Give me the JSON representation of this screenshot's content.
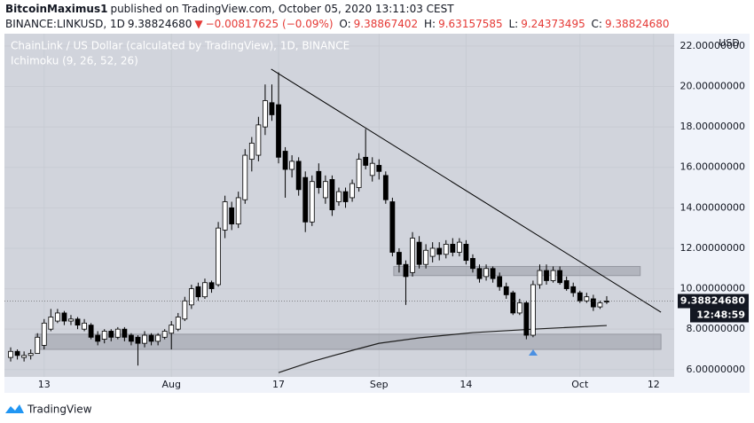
{
  "header": {
    "author": "BitcoinMaximus1",
    "published": "published on TradingView.com, October 05, 2020 13:11:03 CEST",
    "symbol": "BINANCE:LINKUSD, 1D",
    "last": "9.38824680",
    "arrow": "▼",
    "change": "−0.00817625 (−0.09%)",
    "open_label": "O:",
    "open": "9.38867402",
    "high_label": "H:",
    "high": "9.63157585",
    "low_label": "L:",
    "low": "9.24373495",
    "close_label": "C:",
    "close": "9.38824680"
  },
  "footer": {
    "brand": "TradingView"
  },
  "chart_data": {
    "type": "candlestick",
    "title": "ChainLink / US Dollar (calculated by TradingView), 1D, BINANCE",
    "indicator": {
      "name": "Ichimoku (9, 26, 52, 26)",
      "color": "#1e1e1e",
      "x": [
        40,
        45,
        51,
        55,
        61,
        69,
        78,
        89
      ],
      "values": [
        5.85,
        6.4,
        6.95,
        7.3,
        7.57,
        7.83,
        8.0,
        8.18
      ]
    },
    "y_axis_unit": "USD",
    "last_price_label": "9.38824680",
    "countdown": "12:48:59",
    "up_color": "#ffffff",
    "down_color": "#000000",
    "x": [
      0,
      1,
      2,
      3,
      4,
      5,
      6,
      7,
      8,
      9,
      10,
      11,
      12,
      13,
      14,
      15,
      16,
      17,
      18,
      19,
      20,
      21,
      22,
      23,
      24,
      25,
      26,
      27,
      28,
      29,
      30,
      31,
      32,
      33,
      34,
      35,
      36,
      37,
      38,
      39,
      40,
      41,
      42,
      43,
      44,
      45,
      46,
      47,
      48,
      49,
      50,
      51,
      52,
      53,
      54,
      55,
      56,
      57,
      58,
      59,
      60,
      61,
      62,
      63,
      64,
      65,
      66,
      67,
      68,
      69,
      70,
      71,
      72,
      73,
      74,
      75,
      76,
      77,
      78,
      79,
      80,
      81,
      82,
      83,
      84,
      85,
      86,
      87,
      88,
      89
    ],
    "open": [
      6.6,
      6.9,
      6.6,
      6.7,
      6.8,
      7.2,
      8.0,
      8.4,
      8.8,
      8.4,
      8.5,
      8.0,
      8.2,
      7.7,
      7.5,
      7.9,
      7.6,
      8.0,
      7.7,
      7.6,
      7.3,
      7.7,
      7.4,
      7.6,
      7.8,
      8.0,
      8.5,
      9.2,
      10.1,
      9.6,
      10.3,
      10.2,
      12.9,
      14.0,
      13.2,
      14.4,
      16.4,
      16.6,
      18.0,
      19.2,
      19.1,
      16.8,
      15.9,
      16.3,
      15.5,
      13.3,
      15.8,
      14.5,
      15.4,
      14.3,
      14.8,
      14.5,
      15.0,
      16.5,
      15.6,
      16.1,
      15.6,
      14.3,
      11.8,
      11.2,
      10.8,
      12.3,
      11.2,
      11.6,
      12.0,
      11.7,
      12.2,
      11.8,
      12.2,
      11.5,
      11.0,
      10.6,
      11.0,
      10.6,
      10.1,
      9.8,
      8.8,
      9.3,
      7.7,
      10.2,
      10.9,
      10.4,
      10.9,
      10.4,
      10.1,
      9.8,
      9.4,
      9.5,
      9.1,
      9.38867402
    ],
    "high": [
      7.1,
      7.0,
      6.9,
      7.0,
      7.8,
      8.5,
      9.0,
      9.0,
      8.9,
      8.7,
      8.6,
      8.5,
      8.3,
      7.9,
      8.0,
      8.0,
      8.1,
      8.1,
      7.8,
      7.7,
      7.9,
      7.8,
      7.8,
      8.0,
      8.4,
      8.8,
      9.6,
      10.2,
      10.3,
      10.5,
      10.4,
      13.3,
      14.6,
      14.3,
      14.8,
      16.9,
      17.5,
      18.5,
      20.1,
      20.1,
      20.7,
      17.0,
      16.6,
      16.5,
      15.8,
      15.6,
      16.2,
      15.6,
      15.6,
      15.0,
      15.0,
      15.4,
      16.7,
      17.9,
      16.5,
      16.4,
      15.8,
      14.5,
      12.0,
      11.4,
      12.8,
      12.6,
      12.2,
      12.3,
      12.3,
      12.4,
      12.5,
      12.5,
      12.4,
      11.7,
      11.2,
      11.2,
      11.1,
      10.8,
      10.3,
      9.9,
      9.5,
      9.4,
      10.4,
      11.2,
      11.2,
      11.1,
      11.1,
      10.6,
      10.3,
      9.9,
      9.8,
      9.7,
      9.4,
      9.63157585
    ],
    "low": [
      6.4,
      6.5,
      6.4,
      6.5,
      6.8,
      7.0,
      7.9,
      8.3,
      8.2,
      8.2,
      8.0,
      7.9,
      7.5,
      7.2,
      7.3,
      7.4,
      7.5,
      7.4,
      7.2,
      6.2,
      7.1,
      7.2,
      7.2,
      7.5,
      7.0,
      7.9,
      8.4,
      9.0,
      9.4,
      9.5,
      9.8,
      10.1,
      12.5,
      12.9,
      13.0,
      14.2,
      15.8,
      16.3,
      17.6,
      18.3,
      16.2,
      14.5,
      15.5,
      14.6,
      12.8,
      13.1,
      14.7,
      14.2,
      13.6,
      14.1,
      14.0,
      14.3,
      14.8,
      15.9,
      15.3,
      15.4,
      14.2,
      11.6,
      10.8,
      9.2,
      10.6,
      11.0,
      11.0,
      11.3,
      11.4,
      11.5,
      11.6,
      11.6,
      11.2,
      10.8,
      10.3,
      10.4,
      10.3,
      9.9,
      9.5,
      8.7,
      8.7,
      7.5,
      7.6,
      10.0,
      10.2,
      10.3,
      10.2,
      9.9,
      9.6,
      9.3,
      9.3,
      8.9,
      9.0,
      9.24373495
    ],
    "close": [
      6.9,
      6.7,
      6.7,
      6.8,
      7.6,
      8.3,
      8.6,
      8.8,
      8.4,
      8.5,
      8.2,
      8.3,
      7.6,
      7.4,
      7.9,
      7.6,
      8.0,
      7.6,
      7.4,
      7.3,
      7.7,
      7.4,
      7.7,
      7.9,
      8.2,
      8.6,
      9.4,
      10.0,
      9.6,
      10.3,
      10.0,
      13.0,
      14.3,
      13.2,
      14.5,
      16.6,
      17.2,
      18.1,
      19.3,
      18.6,
      16.5,
      15.9,
      16.3,
      14.9,
      13.3,
      15.3,
      15.0,
      15.3,
      13.9,
      14.8,
      14.3,
      15.2,
      16.4,
      16.1,
      16.2,
      15.8,
      14.4,
      11.8,
      11.2,
      10.6,
      12.5,
      11.2,
      11.9,
      12.0,
      11.7,
      12.2,
      11.8,
      12.3,
      11.4,
      11.0,
      10.5,
      11.0,
      10.5,
      10.1,
      9.7,
      8.8,
      9.3,
      7.7,
      10.2,
      10.9,
      10.4,
      10.9,
      10.3,
      10.0,
      9.8,
      9.4,
      9.6,
      9.1,
      9.3,
      9.3882468
    ],
    "trendline": {
      "x": [
        38.9,
        97.1
      ],
      "y": [
        20.86,
        8.84
      ]
    },
    "zones": [
      {
        "x": [
          57.2,
          94.0
        ],
        "y": [
          10.65,
          11.1
        ]
      },
      {
        "x": [
          3.7,
          97.1
        ],
        "y": [
          7.0,
          7.75
        ]
      }
    ],
    "xlim": [
      -0.93,
      99.07
    ],
    "xticks": [
      {
        "value": 5,
        "label": "13"
      },
      {
        "value": 24,
        "label": "Aug"
      },
      {
        "value": 40,
        "label": "17"
      },
      {
        "value": 55,
        "label": "Sep"
      },
      {
        "value": 68,
        "label": "14"
      },
      {
        "value": 85,
        "label": "Oct"
      },
      {
        "value": 96,
        "label": "12"
      }
    ],
    "ylim": [
      5.64,
      22.61
    ],
    "yticks": [
      {
        "value": 6,
        "label": "6.00000000"
      },
      {
        "value": 8,
        "label": "8.00000000"
      },
      {
        "value": 10,
        "label": "10.00000000"
      },
      {
        "value": 12,
        "label": "12.00000000"
      },
      {
        "value": 14,
        "label": "14.00000000"
      },
      {
        "value": 16,
        "label": "16.00000000"
      },
      {
        "value": 18,
        "label": "18.00000000"
      },
      {
        "value": 20,
        "label": "20.00000000"
      },
      {
        "value": 22,
        "label": "22.00000000"
      }
    ]
  }
}
